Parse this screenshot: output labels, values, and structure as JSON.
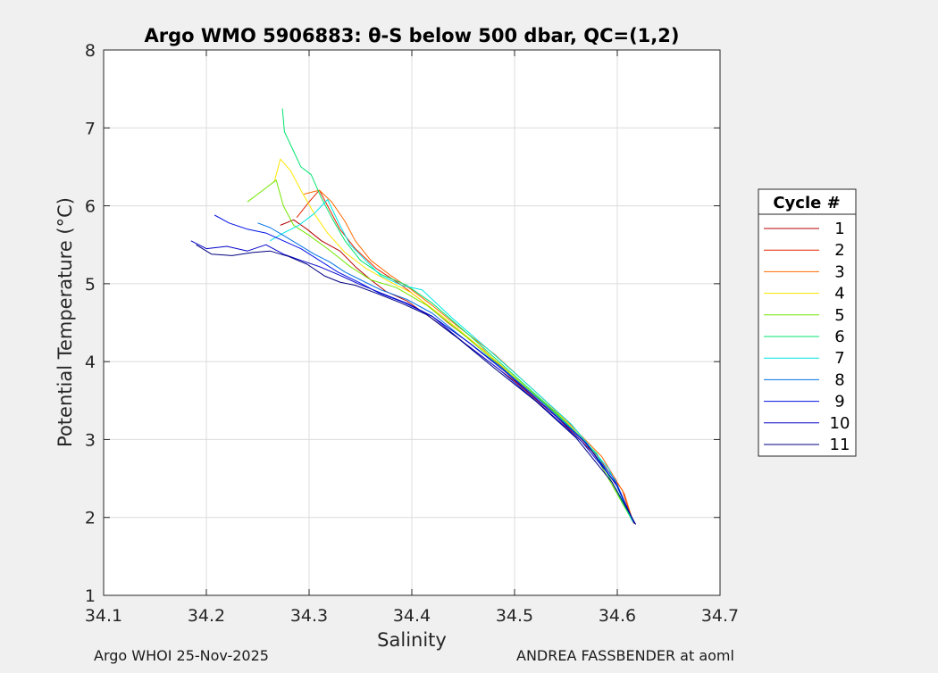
{
  "chart_data": {
    "type": "line",
    "title": "Argo WMO 5906883: θ-S below 500 dbar,  QC=(1,2)",
    "xlabel": "Salinity",
    "ylabel": "Potential Temperature (°C)",
    "xlim": [
      34.1,
      34.7
    ],
    "ylim": [
      1,
      8
    ],
    "xticks": [
      "34.1",
      "34.2",
      "34.3",
      "34.4",
      "34.5",
      "34.6",
      "34.7"
    ],
    "yticks": [
      "1",
      "2",
      "3",
      "4",
      "5",
      "6",
      "7",
      "8"
    ],
    "grid": true,
    "legend": {
      "title": "Cycle #",
      "placement": "right outside"
    },
    "series": [
      {
        "name": "1",
        "color": "#b40000",
        "points": [
          [
            34.272,
            5.75
          ],
          [
            34.285,
            5.82
          ],
          [
            34.298,
            5.7
          ],
          [
            34.312,
            5.55
          ],
          [
            34.33,
            5.42
          ],
          [
            34.345,
            5.22
          ],
          [
            34.36,
            5.05
          ],
          [
            34.375,
            4.9
          ],
          [
            34.395,
            4.78
          ],
          [
            34.42,
            4.55
          ],
          [
            34.46,
            4.15
          ],
          [
            34.5,
            3.75
          ],
          [
            34.54,
            3.3
          ],
          [
            34.575,
            2.85
          ],
          [
            34.6,
            2.4
          ],
          [
            34.612,
            2.05
          ]
        ]
      },
      {
        "name": "2",
        "color": "#e52200",
        "points": [
          [
            34.288,
            5.85
          ],
          [
            34.3,
            6.05
          ],
          [
            34.31,
            6.2
          ],
          [
            34.318,
            6.0
          ],
          [
            34.33,
            5.7
          ],
          [
            34.345,
            5.45
          ],
          [
            34.365,
            5.2
          ],
          [
            34.39,
            4.98
          ],
          [
            34.41,
            4.78
          ],
          [
            34.435,
            4.5
          ],
          [
            34.47,
            4.15
          ],
          [
            34.505,
            3.72
          ],
          [
            34.545,
            3.28
          ],
          [
            34.58,
            2.8
          ],
          [
            34.605,
            2.35
          ],
          [
            34.615,
            1.95
          ]
        ]
      },
      {
        "name": "3",
        "color": "#ff6a00",
        "points": [
          [
            34.295,
            6.15
          ],
          [
            34.31,
            6.2
          ],
          [
            34.322,
            6.05
          ],
          [
            34.335,
            5.8
          ],
          [
            34.345,
            5.55
          ],
          [
            34.36,
            5.3
          ],
          [
            34.38,
            5.1
          ],
          [
            34.4,
            4.92
          ],
          [
            34.42,
            4.72
          ],
          [
            34.445,
            4.45
          ],
          [
            34.48,
            4.1
          ],
          [
            34.515,
            3.68
          ],
          [
            34.55,
            3.25
          ],
          [
            34.585,
            2.78
          ],
          [
            34.607,
            2.3
          ],
          [
            34.616,
            1.92
          ]
        ]
      },
      {
        "name": "4",
        "color": "#ffe600",
        "points": [
          [
            34.266,
            6.3
          ],
          [
            34.272,
            6.6
          ],
          [
            34.282,
            6.45
          ],
          [
            34.292,
            6.2
          ],
          [
            34.305,
            5.9
          ],
          [
            34.318,
            5.65
          ],
          [
            34.335,
            5.4
          ],
          [
            34.355,
            5.2
          ],
          [
            34.375,
            5.05
          ],
          [
            34.4,
            4.88
          ],
          [
            34.43,
            4.58
          ],
          [
            34.465,
            4.2
          ],
          [
            34.505,
            3.75
          ],
          [
            34.545,
            3.3
          ],
          [
            34.58,
            2.82
          ],
          [
            34.615,
            1.95
          ]
        ]
      },
      {
        "name": "5",
        "color": "#73e600",
        "points": [
          [
            34.24,
            6.05
          ],
          [
            34.255,
            6.2
          ],
          [
            34.268,
            6.33
          ],
          [
            34.275,
            6.0
          ],
          [
            34.285,
            5.75
          ],
          [
            34.3,
            5.62
          ],
          [
            34.318,
            5.45
          ],
          [
            34.34,
            5.22
          ],
          [
            34.36,
            5.05
          ],
          [
            34.385,
            4.95
          ],
          [
            34.415,
            4.72
          ],
          [
            34.45,
            4.35
          ],
          [
            34.49,
            3.9
          ],
          [
            34.535,
            3.4
          ],
          [
            34.575,
            2.88
          ],
          [
            34.615,
            1.95
          ]
        ]
      },
      {
        "name": "6",
        "color": "#00e66e",
        "points": [
          [
            34.274,
            7.25
          ],
          [
            34.276,
            6.95
          ],
          [
            34.285,
            6.7
          ],
          [
            34.292,
            6.5
          ],
          [
            34.302,
            6.4
          ],
          [
            34.312,
            6.1
          ],
          [
            34.322,
            5.85
          ],
          [
            34.335,
            5.55
          ],
          [
            34.35,
            5.3
          ],
          [
            34.37,
            5.12
          ],
          [
            34.395,
            4.98
          ],
          [
            34.42,
            4.75
          ],
          [
            34.455,
            4.35
          ],
          [
            34.495,
            3.88
          ],
          [
            34.54,
            3.35
          ],
          [
            34.58,
            2.82
          ],
          [
            34.615,
            1.95
          ]
        ]
      },
      {
        "name": "7",
        "color": "#00e6e6",
        "points": [
          [
            34.262,
            5.55
          ],
          [
            34.275,
            5.65
          ],
          [
            34.29,
            5.75
          ],
          [
            34.305,
            5.9
          ],
          [
            34.318,
            6.08
          ],
          [
            34.33,
            5.75
          ],
          [
            34.34,
            5.5
          ],
          [
            34.355,
            5.3
          ],
          [
            34.37,
            5.1
          ],
          [
            34.39,
            4.98
          ],
          [
            34.41,
            4.92
          ],
          [
            34.44,
            4.55
          ],
          [
            34.475,
            4.15
          ],
          [
            34.515,
            3.68
          ],
          [
            34.555,
            3.2
          ],
          [
            34.592,
            2.62
          ],
          [
            34.615,
            1.95
          ]
        ]
      },
      {
        "name": "8",
        "color": "#0072e6",
        "points": [
          [
            34.25,
            5.78
          ],
          [
            34.262,
            5.72
          ],
          [
            34.275,
            5.62
          ],
          [
            34.29,
            5.5
          ],
          [
            34.305,
            5.38
          ],
          [
            34.32,
            5.28
          ],
          [
            34.335,
            5.15
          ],
          [
            34.35,
            5.05
          ],
          [
            34.37,
            4.92
          ],
          [
            34.395,
            4.8
          ],
          [
            34.42,
            4.62
          ],
          [
            34.45,
            4.3
          ],
          [
            34.485,
            3.95
          ],
          [
            34.525,
            3.5
          ],
          [
            34.565,
            3.02
          ],
          [
            34.598,
            2.48
          ],
          [
            34.616,
            1.93
          ]
        ]
      },
      {
        "name": "9",
        "color": "#0010e6",
        "points": [
          [
            34.208,
            5.88
          ],
          [
            34.222,
            5.78
          ],
          [
            34.24,
            5.7
          ],
          [
            34.258,
            5.65
          ],
          [
            34.275,
            5.55
          ],
          [
            34.292,
            5.45
          ],
          [
            34.31,
            5.3
          ],
          [
            34.328,
            5.15
          ],
          [
            34.348,
            5.02
          ],
          [
            34.368,
            4.88
          ],
          [
            34.392,
            4.76
          ],
          [
            34.42,
            4.58
          ],
          [
            34.45,
            4.25
          ],
          [
            34.485,
            3.9
          ],
          [
            34.525,
            3.45
          ],
          [
            34.565,
            2.98
          ],
          [
            34.598,
            2.45
          ],
          [
            34.617,
            1.92
          ]
        ]
      },
      {
        "name": "10",
        "color": "#0000c8",
        "points": [
          [
            34.185,
            5.55
          ],
          [
            34.2,
            5.45
          ],
          [
            34.22,
            5.48
          ],
          [
            34.24,
            5.42
          ],
          [
            34.258,
            5.5
          ],
          [
            34.275,
            5.38
          ],
          [
            34.292,
            5.3
          ],
          [
            34.31,
            5.22
          ],
          [
            34.328,
            5.12
          ],
          [
            34.348,
            5.0
          ],
          [
            34.37,
            4.88
          ],
          [
            34.395,
            4.75
          ],
          [
            34.42,
            4.58
          ],
          [
            34.455,
            4.25
          ],
          [
            34.49,
            3.88
          ],
          [
            34.53,
            3.42
          ],
          [
            34.57,
            2.95
          ],
          [
            34.6,
            2.4
          ],
          [
            34.617,
            1.92
          ]
        ]
      },
      {
        "name": "11",
        "color": "#000080",
        "points": [
          [
            34.19,
            5.5
          ],
          [
            34.205,
            5.38
          ],
          [
            34.225,
            5.36
          ],
          [
            34.245,
            5.4
          ],
          [
            34.262,
            5.42
          ],
          [
            34.28,
            5.35
          ],
          [
            34.298,
            5.25
          ],
          [
            34.315,
            5.1
          ],
          [
            34.33,
            5.02
          ],
          [
            34.345,
            4.98
          ],
          [
            34.365,
            4.88
          ],
          [
            34.39,
            4.75
          ],
          [
            34.415,
            4.6
          ],
          [
            34.445,
            4.3
          ],
          [
            34.48,
            3.92
          ],
          [
            34.52,
            3.5
          ],
          [
            34.56,
            3.02
          ],
          [
            34.595,
            2.45
          ],
          [
            34.618,
            1.91
          ]
        ]
      }
    ]
  },
  "footer": {
    "left": "Argo WHOI 25-Nov-2025",
    "right": "ANDREA FASSBENDER at aoml"
  }
}
